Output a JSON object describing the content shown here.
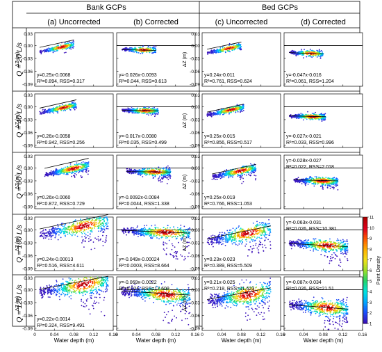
{
  "chart_data": {
    "type": "scatter",
    "title": "",
    "groups": [
      "Bank GCPs",
      "Bed GCPs"
    ],
    "columns": [
      "(a) Uncorrected",
      "(b) Corrected",
      "(c) Uncorrected",
      "(d) Corrected"
    ],
    "rows": [
      "Q = 20 L/s",
      "Q = 40 L/s",
      "Q = 60 L/s",
      "Q = 100 L/s",
      "Q = 120 L/s"
    ],
    "xlabel": "Water depth (m)",
    "ylabel": "ΔZ (m)",
    "xlim": [
      0,
      0.16
    ],
    "ylim": [
      -0.095,
      0.03
    ],
    "xticks": [
      "0",
      "0.04",
      "0.08",
      "0.12",
      "0.16"
    ],
    "yticks": [
      "0.00",
      "-0.03",
      "-0.06",
      "-0.09"
    ],
    "extra_ytick": "0.03",
    "colorbar": {
      "label": "Point Density",
      "min": 1,
      "max": 11,
      "ticks": [
        "11",
        "10",
        "9",
        "8",
        "7",
        "6",
        "5",
        "4",
        "3",
        "2",
        "1"
      ]
    },
    "reference_line": 0,
    "panels": [
      [
        {
          "eq": "y=0.25x-0.0068",
          "r2": "R²=0.894, RSS=0.317"
        },
        {
          "eq": "y=-0.026x-0.0093",
          "r2": "R²=0.044, RSS=0.613"
        },
        {
          "eq": "y=0.24x-0.011",
          "r2": "R²=0.761, RSS=0.624"
        },
        {
          "eq": "y=-0.047x-0.016",
          "r2": "R²=0.061, RSS=1.204"
        }
      ],
      [
        {
          "eq": "y=0.26x-0.0058",
          "r2": "R²=0.942, RSS=0.256"
        },
        {
          "eq": "y=-0.017x-0.0080",
          "r2": "R²=0.035, RSS=0.499"
        },
        {
          "eq": "y=0.25x-0.015",
          "r2": "R²=0.856, RSS=0.517"
        },
        {
          "eq": "y=-0.027x-0.021",
          "r2": "R²=0.033, RSS=0.996"
        }
      ],
      [
        {
          "eq": "y=0.26x-0.0060",
          "r2": "R²=0.872, RSS=0.729"
        },
        {
          "eq": "y=-0.0092x-0.0084",
          "r2": "R²=0.0044, RSS=1.338"
        },
        {
          "eq": "y=0.25x-0.019",
          "r2": "R²=0.766, RSS=1.053"
        },
        {
          "eq": "y=-0.028x-0.027",
          "r2": "R²=0.022, RSS=2.018"
        }
      ],
      [
        {
          "eq": "y=0.24x-0.00013",
          "r2": "R²=0.516, RSS=4.611"
        },
        {
          "eq": "y=-0.049x-0.00024",
          "r2": "R²=0.0003, RSS=8.664"
        },
        {
          "eq": "y=0.23x-0.023",
          "r2": "R²=0.389, RSS=5.509"
        },
        {
          "eq": "y=-0.063x-0.031",
          "r2": "R²=0.026, RSS=10.381"
        }
      ],
      [
        {
          "eq": "y=0.22x-0.0014",
          "r2": "R²=0.324, RSS=9.491"
        },
        {
          "eq": "y=-0.069x-0.0022",
          "r2": "R²=0.024, RSS=17.609"
        },
        {
          "eq": "y=0.21x-0.025",
          "r2": "R²=0.218, RSS=11.623"
        },
        {
          "eq": "y=-0.087x-0.034",
          "r2": "R²=0.026, RSS=21.51"
        }
      ]
    ],
    "clouds": [
      [
        {
          "x0": 0.01,
          "x1": 0.08,
          "yc": -0.006,
          "spread": 0.003,
          "tail": 0
        },
        {
          "x0": 0.01,
          "x1": 0.08,
          "yc": -0.01,
          "spread": 0.003,
          "tail": 0
        },
        {
          "x0": 0.01,
          "x1": 0.08,
          "yc": -0.009,
          "spread": 0.003,
          "tail": 0
        },
        {
          "x0": 0.01,
          "x1": 0.08,
          "yc": -0.018,
          "spread": 0.003,
          "tail": 0
        }
      ],
      [
        {
          "x0": 0.01,
          "x1": 0.085,
          "yc": -0.005,
          "spread": 0.003,
          "tail": 0
        },
        {
          "x0": 0.01,
          "x1": 0.085,
          "yc": -0.009,
          "spread": 0.003,
          "tail": 0
        },
        {
          "x0": 0.01,
          "x1": 0.085,
          "yc": -0.01,
          "spread": 0.003,
          "tail": 0
        },
        {
          "x0": 0.01,
          "x1": 0.085,
          "yc": -0.023,
          "spread": 0.003,
          "tail": 0
        }
      ],
      [
        {
          "x0": 0.02,
          "x1": 0.11,
          "yc": -0.005,
          "spread": 0.004,
          "tail": 0.02
        },
        {
          "x0": 0.02,
          "x1": 0.11,
          "yc": -0.009,
          "spread": 0.004,
          "tail": 0.02
        },
        {
          "x0": 0.02,
          "x1": 0.11,
          "yc": -0.01,
          "spread": 0.004,
          "tail": 0.02
        },
        {
          "x0": 0.02,
          "x1": 0.11,
          "yc": -0.03,
          "spread": 0.004,
          "tail": 0.01
        }
      ],
      [
        {
          "x0": 0.01,
          "x1": 0.15,
          "yc": 0.004,
          "spread": 0.008,
          "tail": 0.05
        },
        {
          "x0": 0.01,
          "x1": 0.15,
          "yc": -0.005,
          "spread": 0.006,
          "tail": 0.06
        },
        {
          "x0": 0.01,
          "x1": 0.14,
          "yc": -0.012,
          "spread": 0.008,
          "tail": 0.05
        },
        {
          "x0": 0.01,
          "x1": 0.13,
          "yc": -0.035,
          "spread": 0.006,
          "tail": 0.04
        }
      ],
      [
        {
          "x0": 0.01,
          "x1": 0.15,
          "yc": 0.008,
          "spread": 0.01,
          "tail": 0.06
        },
        {
          "x0": 0.01,
          "x1": 0.15,
          "yc": -0.01,
          "spread": 0.008,
          "tail": 0.07
        },
        {
          "x0": 0.01,
          "x1": 0.14,
          "yc": -0.015,
          "spread": 0.01,
          "tail": 0.06
        },
        {
          "x0": 0.01,
          "x1": 0.13,
          "yc": -0.04,
          "spread": 0.008,
          "tail": 0.05
        }
      ]
    ],
    "colors": {
      "line": "#000000",
      "frame": "#000000",
      "colormap": [
        "#3b0fb8",
        "#1a4fff",
        "#00a9ff",
        "#00e5e0",
        "#22d46a",
        "#9be02a",
        "#f2e21a",
        "#ffb000",
        "#ff5a00",
        "#e0001e",
        "#b00000"
      ]
    }
  }
}
